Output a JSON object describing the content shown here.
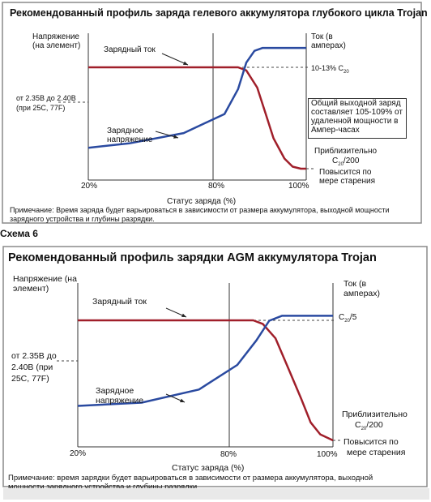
{
  "colors": {
    "current_line": "#a01f2a",
    "voltage_line": "#2a4aa0",
    "axis": "#333333",
    "dashed": "#444444",
    "border": "#8a8a8a"
  },
  "scheme_label": "Схема 6",
  "chart_data": [
    {
      "type": "line",
      "title": "Рекомендованный профиль заряда гелевого аккумулятора глубокого цикла Trojan",
      "ylabel_left": "Напряжение (на элемент)",
      "ylabel_right": "Ток (в амперах)",
      "xlabel": "Статус заряда (%)",
      "x_ticks": [
        "20%",
        "80%",
        "100%"
      ],
      "xlim": [
        20,
        100
      ],
      "left_annotations": [
        "от 2.35В до 2.40В",
        "(при 25С, 77F)"
      ],
      "right_annotations": {
        "current_level": "10-13% C",
        "current_level_sub": "20",
        "box": [
          "Общий выходной заряд",
          "составляет 105-109% от",
          "удаленной мощности в",
          "Ампер-часах"
        ],
        "approx": "Приблизительно",
        "approx_value": "C",
        "approx_sub": "20",
        "approx_tail": "/200",
        "aging": [
          "Повысится по",
          "мере старения"
        ]
      },
      "series": [
        {
          "name": "Зарядный ток",
          "x": [
            20,
            75,
            78,
            82,
            85,
            88,
            92,
            95,
            98
          ],
          "values": [
            1.0,
            1.0,
            0.97,
            0.8,
            0.55,
            0.3,
            0.1,
            0.02,
            0.0
          ]
        },
        {
          "name": "Зарядное напряжение",
          "x": [
            20,
            35,
            55,
            70,
            75,
            78,
            81,
            84,
            100
          ],
          "values": [
            0.22,
            0.25,
            0.32,
            0.45,
            0.62,
            0.8,
            0.88,
            0.9,
            0.9
          ]
        }
      ],
      "note": "Примечание: Время заряда будет варьироваться в зависимости от размера аккумулятора, выходной мощности зарядного устройства и глубины разрядки."
    },
    {
      "type": "line",
      "title": "Рекомендованный профиль зарядки AGM аккумулятора Trojan",
      "ylabel_left": "Напряжение (на элемент)",
      "ylabel_right": "Ток (в амперах)",
      "xlabel": "Статус заряда (%)",
      "x_ticks": [
        "20%",
        "80%",
        "100%"
      ],
      "xlim": [
        20,
        100
      ],
      "left_annotations": [
        "от 2.35В до",
        "2.40В (при",
        "25С, 77F)"
      ],
      "right_annotations": {
        "current_level": "C",
        "current_level_sub": "20",
        "current_level_tail": "/5",
        "approx": "Приблизительно",
        "approx_value": "C",
        "approx_sub": "20",
        "approx_tail": "/200",
        "aging": [
          "Повысится по",
          "мере старения"
        ]
      },
      "series": [
        {
          "name": "Зарядный ток",
          "x": [
            20,
            75,
            78,
            82,
            86,
            90,
            93,
            96,
            100
          ],
          "values": [
            1.0,
            1.0,
            0.97,
            0.85,
            0.6,
            0.35,
            0.15,
            0.05,
            0.0
          ]
        },
        {
          "name": "Зарядное напряжение",
          "x": [
            20,
            40,
            58,
            70,
            76,
            80,
            84,
            100
          ],
          "values": [
            0.25,
            0.27,
            0.35,
            0.5,
            0.65,
            0.77,
            0.8,
            0.8
          ]
        }
      ],
      "note": "Примечание: время зарядки будет варьироваться в зависимости от размера аккумулятора, выходной мощности зарядного устройства и глубины разрядки."
    }
  ]
}
